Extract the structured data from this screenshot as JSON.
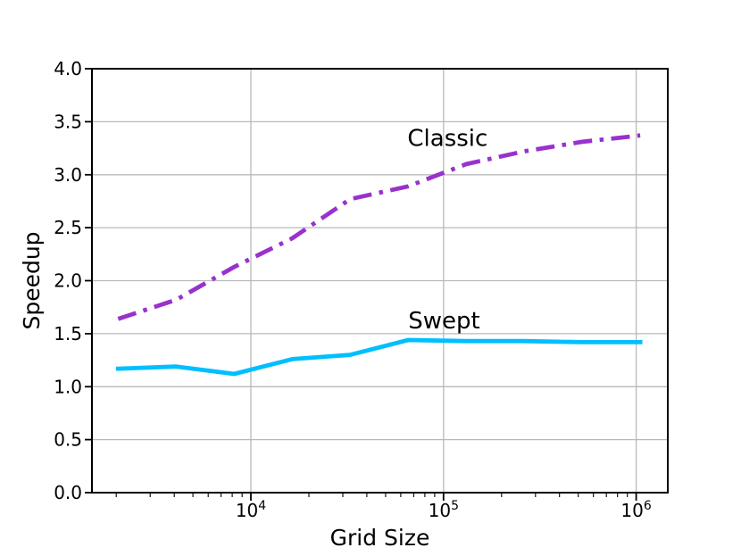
{
  "chart_data": {
    "type": "line",
    "title": "",
    "xlabel": "Grid Size",
    "ylabel": "Speedup",
    "x_scale": "log",
    "grid": true,
    "legend": "inline-annotations",
    "x": [
      2048,
      4096,
      8192,
      16384,
      32768,
      65536,
      131072,
      262144,
      524288,
      1048576
    ],
    "series": [
      {
        "name": "Classic",
        "color": "#9932CC",
        "line_style": "dashdot",
        "values": [
          1.64,
          1.82,
          2.13,
          2.4,
          2.77,
          2.89,
          3.1,
          3.22,
          3.31,
          3.37
        ]
      },
      {
        "name": "Swept",
        "color": "#00BFFF",
        "line_style": "solid",
        "values": [
          1.17,
          1.19,
          1.12,
          1.26,
          1.3,
          1.44,
          1.43,
          1.43,
          1.42,
          1.42
        ]
      }
    ],
    "annotations": [
      {
        "text": "Classic",
        "x": 65000,
        "y": 3.27
      },
      {
        "text": "Swept",
        "x": 65500,
        "y": 1.55
      }
    ],
    "x_ticks": [
      {
        "base": "10",
        "exp": "4"
      },
      {
        "base": "10",
        "exp": "5"
      },
      {
        "base": "10",
        "exp": "6"
      }
    ],
    "x_tick_values": [
      10000,
      100000,
      1000000
    ],
    "y_ticks": [
      "0.0",
      "0.5",
      "1.0",
      "1.5",
      "2.0",
      "2.5",
      "3.0",
      "3.5",
      "4.0"
    ],
    "y_tick_values": [
      0,
      0.5,
      1.0,
      1.5,
      2.0,
      2.5,
      3.0,
      3.5,
      4.0
    ],
    "ylim": [
      0,
      4
    ],
    "xlim": [
      1497,
      1459000
    ]
  },
  "colors": {
    "background": "#ffffff",
    "grid": "#b9b9b9",
    "axis": "#000000",
    "text": "#000000"
  }
}
